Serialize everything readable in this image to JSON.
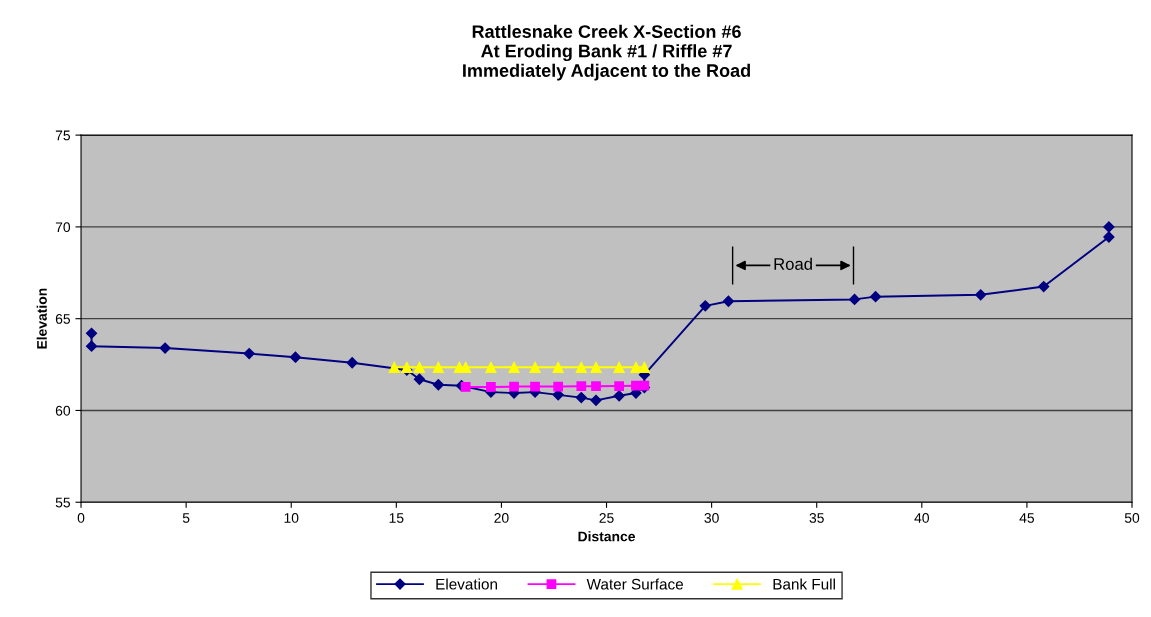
{
  "chart_data": {
    "type": "line",
    "title": "Rattlesnake Creek X-Section #6\nAt Eroding Bank #1 / Riffle #7\nImmediately Adjacent to the Road",
    "xlabel": "Distance",
    "ylabel": "Elevation",
    "series": [
      {
        "name": "Elevation",
        "color": "#000080",
        "marker": "diamond",
        "x": [
          0.5,
          0.5,
          4.0,
          8.0,
          10.2,
          12.9,
          15.5,
          16.1,
          17.0,
          18.1,
          19.5,
          20.6,
          21.6,
          22.7,
          23.8,
          24.5,
          25.6,
          26.4,
          26.8,
          26.8,
          29.7,
          30.8,
          36.8,
          37.8,
          42.8,
          45.8,
          48.9,
          48.9
        ],
        "values": [
          64.2,
          63.5,
          63.4,
          63.1,
          62.9,
          62.6,
          62.2,
          61.7,
          61.4,
          61.35,
          61.0,
          60.95,
          61.0,
          60.85,
          60.7,
          60.55,
          60.8,
          60.95,
          61.25,
          61.95,
          65.7,
          65.95,
          66.05,
          66.2,
          66.3,
          66.75,
          69.45,
          70.0
        ]
      },
      {
        "name": "Water Surface",
        "color": "#ff00ff",
        "marker": "square",
        "x": [
          18.3,
          19.5,
          20.6,
          21.6,
          22.7,
          23.8,
          24.5,
          25.6,
          26.4,
          26.8
        ],
        "values": [
          61.28,
          61.28,
          61.3,
          61.3,
          61.3,
          61.32,
          61.32,
          61.33,
          61.35,
          61.35
        ]
      },
      {
        "name": "Bank Full",
        "color": "#ffff00",
        "marker": "triangle",
        "x": [
          14.9,
          15.5,
          16.1,
          17.0,
          18.0,
          18.3,
          19.5,
          20.6,
          21.6,
          22.7,
          23.8,
          24.5,
          25.6,
          26.4,
          26.8
        ],
        "values": [
          62.35,
          62.35,
          62.35,
          62.35,
          62.35,
          62.35,
          62.35,
          62.35,
          62.35,
          62.35,
          62.35,
          62.35,
          62.35,
          62.35,
          62.35
        ]
      }
    ],
    "xlim": [
      0,
      50
    ],
    "xticks": [
      0,
      5,
      10,
      15,
      20,
      25,
      30,
      35,
      40,
      45,
      50
    ],
    "ylim": [
      55,
      75
    ],
    "yticks": [
      55,
      60,
      65,
      70,
      75
    ],
    "annotations": [
      "Road"
    ],
    "ref_lines": [
      {
        "axis": "x",
        "value": 31.0
      },
      {
        "axis": "x",
        "value": 36.75
      }
    ],
    "grid": "y",
    "legend": "bottom",
    "line_style": "solid"
  }
}
